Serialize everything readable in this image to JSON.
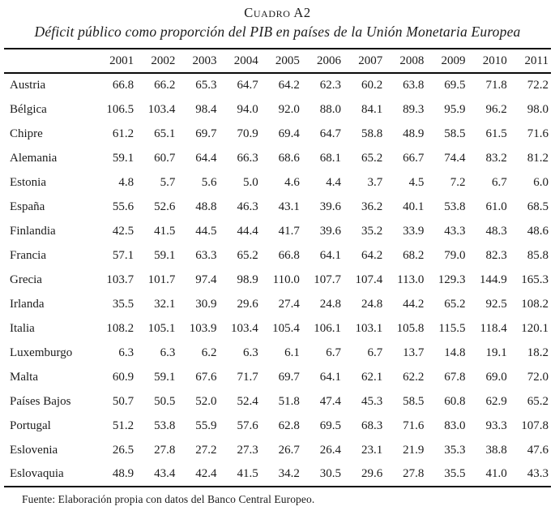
{
  "title": "Cuadro A2",
  "subtitle": "Déficit público como proporción del PIB en países de la Unión Monetaria Europea",
  "source_note": "Fuente: Elaboración propia con datos del Banco Central Europeo.",
  "colors": {
    "background": "#ffffff",
    "text": "#1b1b1b",
    "rule": "#0a0a0a"
  },
  "chart_data": {
    "type": "table",
    "title": "Cuadro A2",
    "subtitle": "Déficit público como proporción del PIB en países de la Unión Monetaria Europea",
    "columns": [
      "2001",
      "2002",
      "2003",
      "2004",
      "2005",
      "2006",
      "2007",
      "2008",
      "2009",
      "2010",
      "2011"
    ],
    "rows": [
      {
        "label": "Austria",
        "values": [
          "66.8",
          "66.2",
          "65.3",
          "64.7",
          "64.2",
          "62.3",
          "60.2",
          "63.8",
          "69.5",
          "71.8",
          "72.2"
        ]
      },
      {
        "label": "Bélgica",
        "values": [
          "106.5",
          "103.4",
          "98.4",
          "94.0",
          "92.0",
          "88.0",
          "84.1",
          "89.3",
          "95.9",
          "96.2",
          "98.0"
        ]
      },
      {
        "label": "Chipre",
        "values": [
          "61.2",
          "65.1",
          "69.7",
          "70.9",
          "69.4",
          "64.7",
          "58.8",
          "48.9",
          "58.5",
          "61.5",
          "71.6"
        ]
      },
      {
        "label": "Alemania",
        "values": [
          "59.1",
          "60.7",
          "64.4",
          "66.3",
          "68.6",
          "68.1",
          "65.2",
          "66.7",
          "74.4",
          "83.2",
          "81.2"
        ]
      },
      {
        "label": "Estonia",
        "values": [
          "4.8",
          "5.7",
          "5.6",
          "5.0",
          "4.6",
          "4.4",
          "3.7",
          "4.5",
          "7.2",
          "6.7",
          "6.0"
        ]
      },
      {
        "label": "España",
        "values": [
          "55.6",
          "52.6",
          "48.8",
          "46.3",
          "43.1",
          "39.6",
          "36.2",
          "40.1",
          "53.8",
          "61.0",
          "68.5"
        ]
      },
      {
        "label": "Finlandia",
        "values": [
          "42.5",
          "41.5",
          "44.5",
          "44.4",
          "41.7",
          "39.6",
          "35.2",
          "33.9",
          "43.3",
          "48.3",
          "48.6"
        ]
      },
      {
        "label": "Francia",
        "values": [
          "57.1",
          "59.1",
          "63.3",
          "65.2",
          "66.8",
          "64.1",
          "64.2",
          "68.2",
          "79.0",
          "82.3",
          "85.8"
        ]
      },
      {
        "label": "Grecia",
        "values": [
          "103.7",
          "101.7",
          "97.4",
          "98.9",
          "110.0",
          "107.7",
          "107.4",
          "113.0",
          "129.3",
          "144.9",
          "165.3"
        ]
      },
      {
        "label": "Irlanda",
        "values": [
          "35.5",
          "32.1",
          "30.9",
          "29.6",
          "27.4",
          "24.8",
          "24.8",
          "44.2",
          "65.2",
          "92.5",
          "108.2"
        ]
      },
      {
        "label": "Italia",
        "values": [
          "108.2",
          "105.1",
          "103.9",
          "103.4",
          "105.4",
          "106.1",
          "103.1",
          "105.8",
          "115.5",
          "118.4",
          "120.1"
        ]
      },
      {
        "label": "Luxemburgo",
        "values": [
          "6.3",
          "6.3",
          "6.2",
          "6.3",
          "6.1",
          "6.7",
          "6.7",
          "13.7",
          "14.8",
          "19.1",
          "18.2"
        ]
      },
      {
        "label": "Malta",
        "values": [
          "60.9",
          "59.1",
          "67.6",
          "71.7",
          "69.7",
          "64.1",
          "62.1",
          "62.2",
          "67.8",
          "69.0",
          "72.0"
        ]
      },
      {
        "label": "Países Bajos",
        "values": [
          "50.7",
          "50.5",
          "52.0",
          "52.4",
          "51.8",
          "47.4",
          "45.3",
          "58.5",
          "60.8",
          "62.9",
          "65.2"
        ]
      },
      {
        "label": "Portugal",
        "values": [
          "51.2",
          "53.8",
          "55.9",
          "57.6",
          "62.8",
          "69.5",
          "68.3",
          "71.6",
          "83.0",
          "93.3",
          "107.8"
        ]
      },
      {
        "label": "Eslovenia",
        "values": [
          "26.5",
          "27.8",
          "27.2",
          "27.3",
          "26.7",
          "26.4",
          "23.1",
          "21.9",
          "35.3",
          "38.8",
          "47.6"
        ]
      },
      {
        "label": "Eslovaquia",
        "values": [
          "48.9",
          "43.4",
          "42.4",
          "41.5",
          "34.2",
          "30.5",
          "29.6",
          "27.8",
          "35.5",
          "41.0",
          "43.3"
        ]
      }
    ],
    "source": "Fuente: Elaboración propia con datos del Banco Central Europeo."
  }
}
